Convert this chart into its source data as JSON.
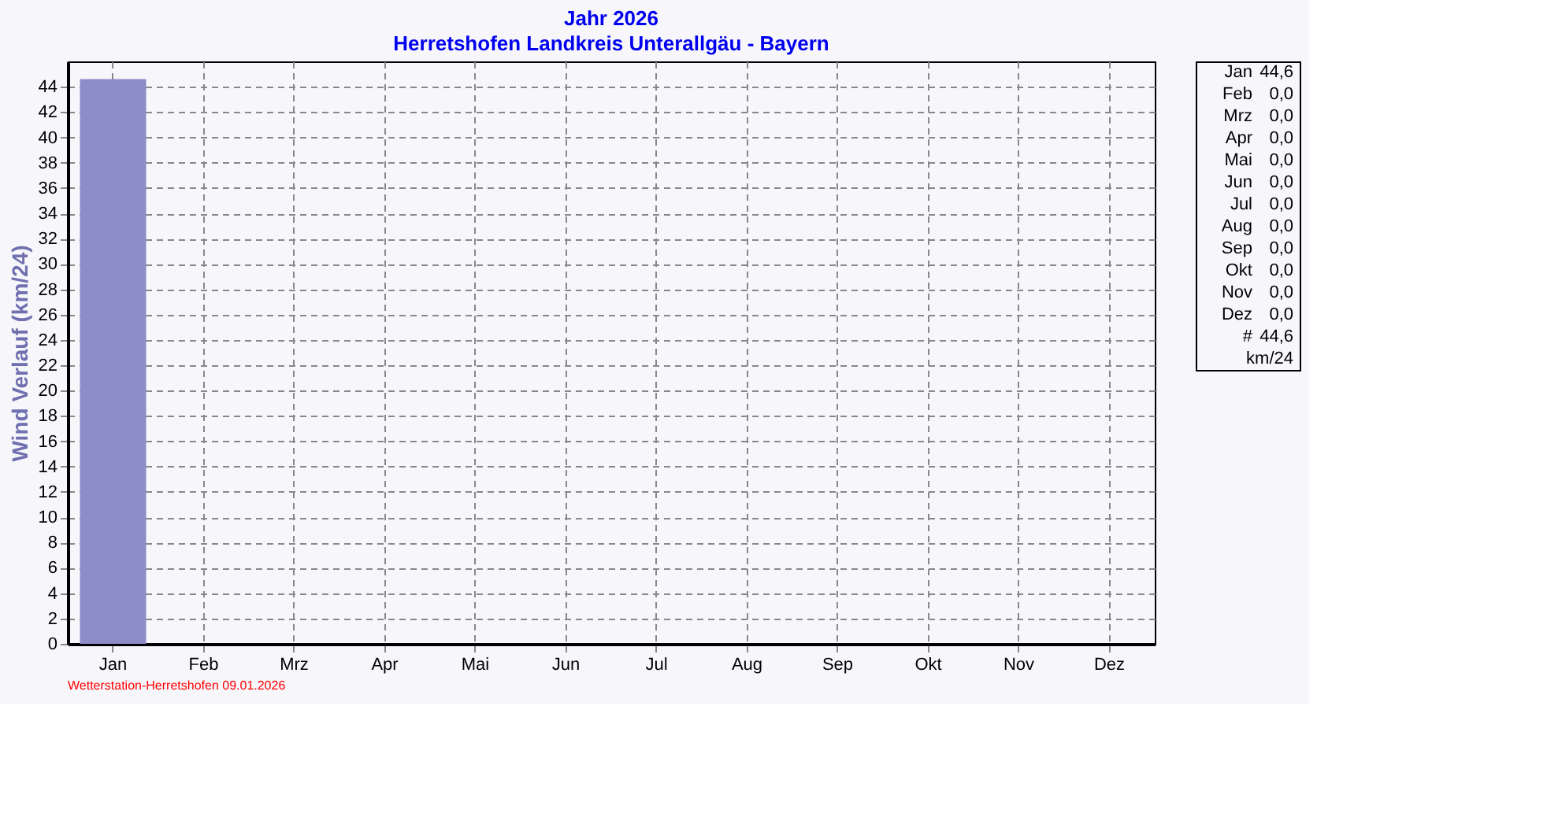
{
  "chart_data": [
    {
      "type": "bar",
      "title": "Jahr  2026",
      "subtitle": "Herretshofen Landkreis Unterallgäu - Bayern",
      "ylabel": "Wind Verlauf  (km/24)",
      "categories": [
        "Jan",
        "Feb",
        "Mrz",
        "Apr",
        "Mai",
        "Jun",
        "Jul",
        "Aug",
        "Sep",
        "Okt",
        "Nov",
        "Dez"
      ],
      "values": [
        44.6,
        0,
        0,
        0,
        0,
        0,
        0,
        0,
        0,
        0,
        0,
        0
      ],
      "color": "#8c8cc8",
      "ylim": [
        0,
        46
      ],
      "yticks": [
        0,
        2,
        4,
        6,
        8,
        10,
        12,
        14,
        16,
        18,
        20,
        22,
        24,
        26,
        28,
        30,
        32,
        34,
        36,
        38,
        40,
        42,
        44
      ],
      "grid": true,
      "line_style": "dashed",
      "annotations": [
        "Wetterstation-Herretshofen  09.01.2026"
      ]
    },
    {
      "type": "other",
      "annotations": [
        "Jan",
        "44,6",
        "Feb",
        "0,0",
        "Mrz",
        "0,0",
        "Apr",
        "0,0",
        "Mai",
        "0,0",
        "Jun",
        "0,0",
        "Jul",
        "0,0",
        "Aug",
        "0,0",
        "Sep",
        "0,0",
        "Okt",
        "0,0",
        "Nov",
        "0,0",
        "Dez",
        "0,0",
        "#",
        "44,6",
        "km/24"
      ]
    }
  ]
}
